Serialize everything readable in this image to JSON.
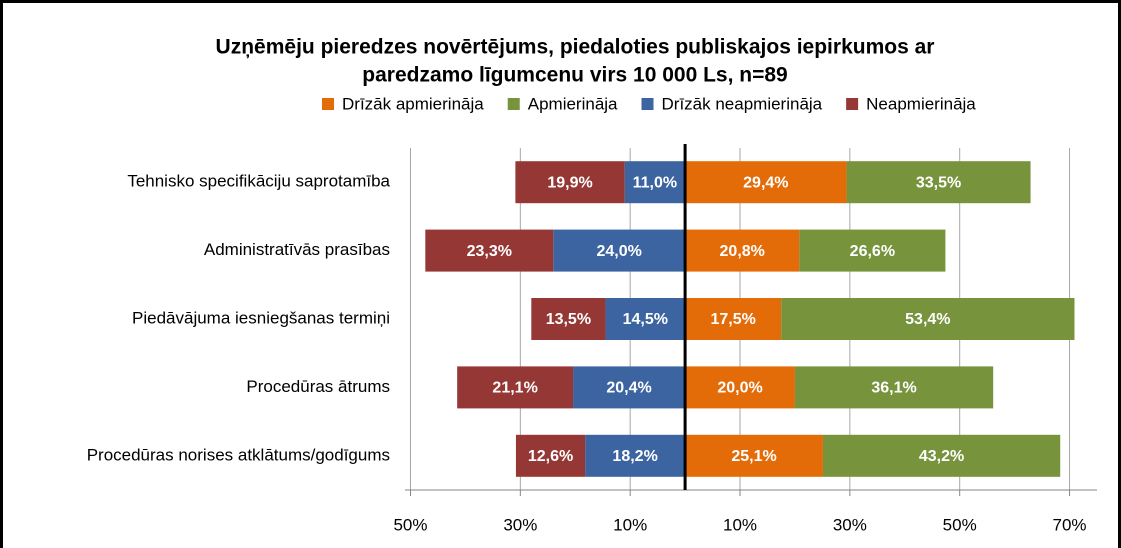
{
  "chart_data": {
    "type": "diverging-bar",
    "title": [
      "Uzņēmēju pieredzes novērtējums, piedaloties publiskajos iepirkumos ar",
      "paredzamo līgumcenu virs 10 000 Ls, n=89"
    ],
    "categories": [
      "Tehnisko specifikāciju saprotamība",
      "Administratīvās prasības",
      "Piedāvājuma iesniegšanas termiņi",
      "Procedūras ātrums",
      "Procedūras norises atklātums/godīgums"
    ],
    "series": [
      {
        "name": "Drīzāk apmierināja",
        "color": "#e36c09",
        "values": [
          29.4,
          20.8,
          17.5,
          20.0,
          25.1
        ],
        "value_labels": [
          "29,4%",
          "20,8%",
          "17,5%",
          "20,0%",
          "25,1%"
        ]
      },
      {
        "name": "Apmierināja",
        "color": "#77933c",
        "values": [
          33.5,
          26.6,
          53.4,
          36.1,
          43.2
        ],
        "value_labels": [
          "33,5%",
          "26,6%",
          "53,4%",
          "36,1%",
          "43,2%"
        ]
      },
      {
        "name": "Drīzāk neapmierināja",
        "color": "#3c64a0",
        "values": [
          -11.0,
          -24.0,
          -14.5,
          -20.4,
          -18.2
        ],
        "value_labels": [
          "11,0%",
          "24,0%",
          "14,5%",
          "20,4%",
          "18,2%"
        ]
      },
      {
        "name": "Neapmierināja",
        "color": "#953735",
        "values": [
          -19.9,
          -23.3,
          -13.5,
          -21.1,
          -12.6
        ],
        "value_labels": [
          "19,9%",
          "23,3%",
          "13,5%",
          "21,1%",
          "12,6%"
        ]
      }
    ],
    "xlim": [
      -51,
      75
    ],
    "xticks": [
      {
        "value": -50,
        "label": "50%"
      },
      {
        "value": -30,
        "label": "30%"
      },
      {
        "value": -10,
        "label": "10%"
      },
      {
        "value": 10,
        "label": "10%"
      },
      {
        "value": 30,
        "label": "30%"
      },
      {
        "value": 50,
        "label": "50%"
      },
      {
        "value": 70,
        "label": "70%"
      }
    ],
    "grid": true
  }
}
